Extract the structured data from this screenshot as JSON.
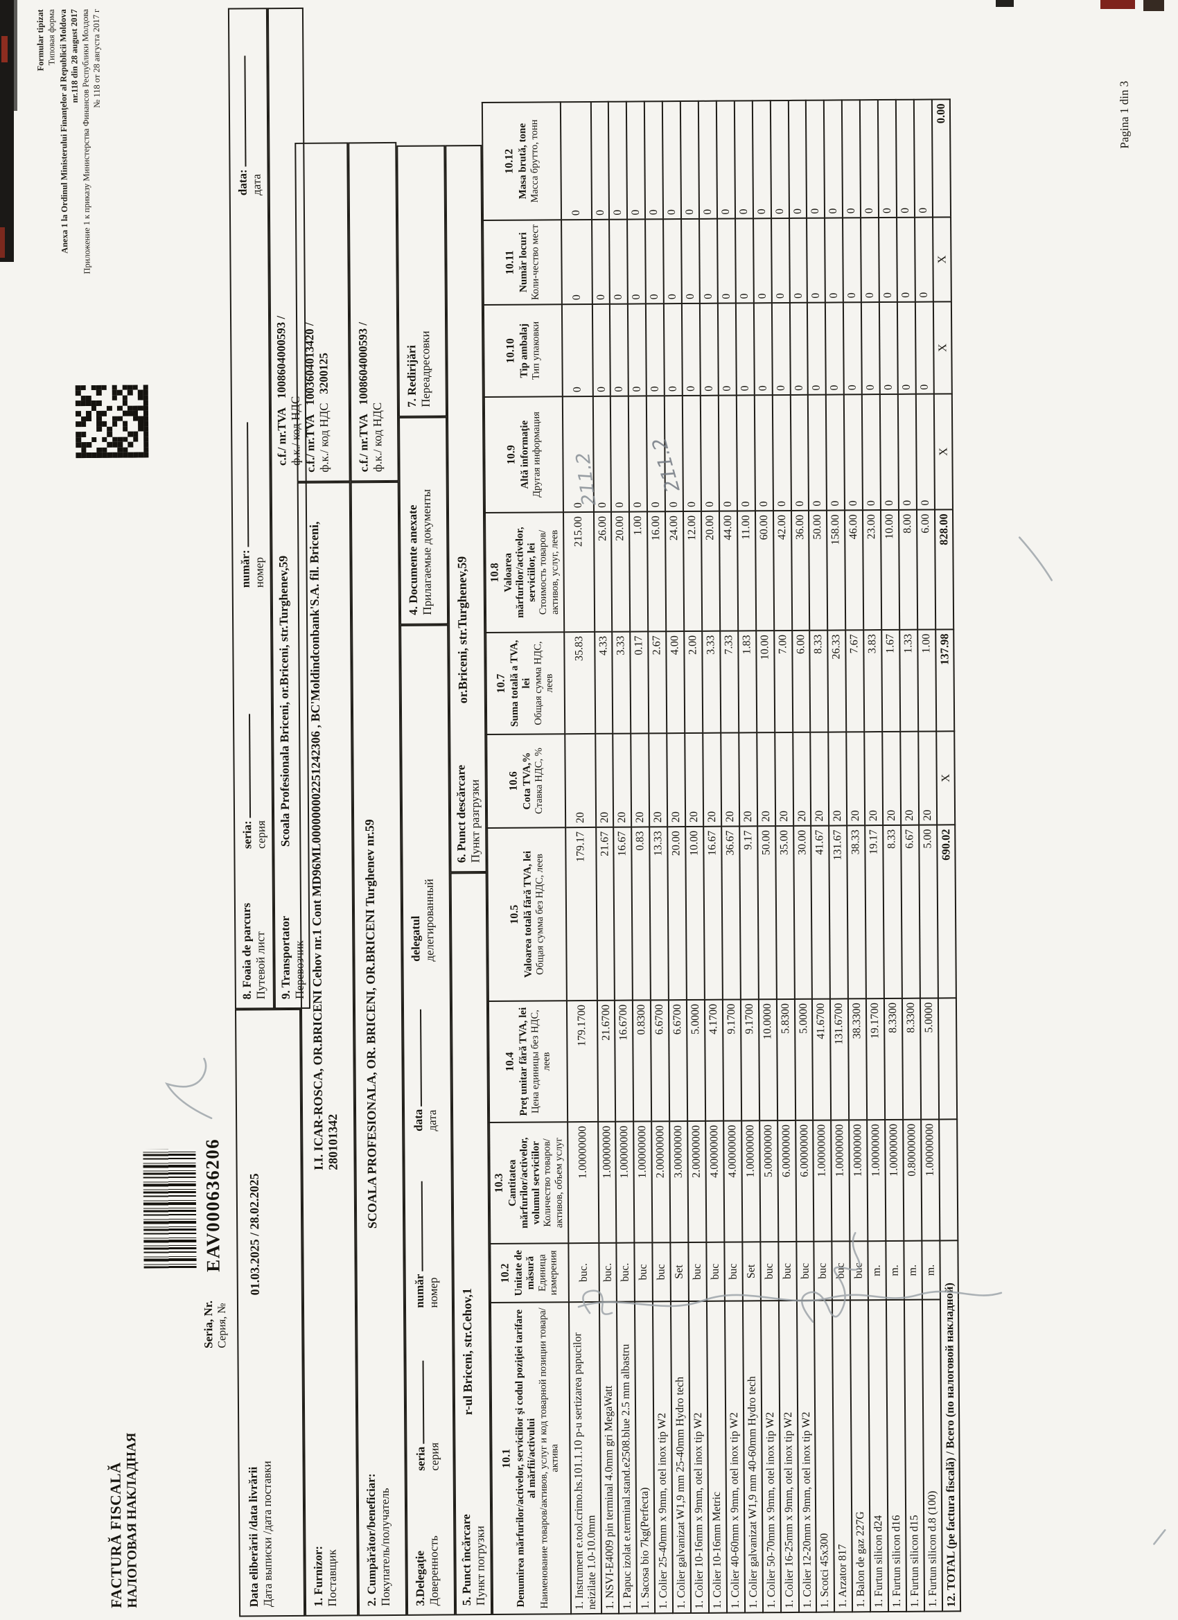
{
  "page": {
    "label": "Pagina 1 din 3"
  },
  "corner": {
    "lines": [
      {
        "text": "Formular tipizat",
        "bold": true
      },
      {
        "text": "Типовая форма",
        "bold": false
      },
      {
        "text": "Anexa 1 la Ordinul Ministerului Finanţelor al Republicii Moldova",
        "bold": true
      },
      {
        "text": "nr.118 din 28 august 2017",
        "bold": true
      },
      {
        "text": "Приложение 1 к приказу Министерства Финансов Республики Молдова",
        "bold": false
      },
      {
        "text": "№ 118 от 28 августа 2017 г",
        "bold": false
      }
    ]
  },
  "title": {
    "ro": "FACTURĂ FISCALĂ",
    "ru": "НАЛОГОВАЯ НАКЛАДНАЯ"
  },
  "series": {
    "label_ro": "Seria, Nr.",
    "label_ru": "Серия, №",
    "value": "EAV000636206"
  },
  "fields": {
    "date": {
      "label_ro": "Data eliberării /data livrării",
      "label_ru": "Дата выписки /дата поставки",
      "value": "01.03.2025 / 28.02.2025"
    },
    "furnizor": {
      "label_ro": "1. Furnizor:",
      "label_ru": "Поставщик",
      "value": "I.I. ICAR-ROSCA, OR.BRICENI Cehov nr.1 Cont MD96ML000000002251242306 , BC'Moldindconbank'S.A. fil. Briceni, 280101342"
    },
    "cumparator": {
      "label_ro": "2. Cumpărător/beneficiar:",
      "label_ru": "Покупатель/получатель",
      "value": "SCOALA PROFESIONALA, OR. BRICENI, OR.BRICENI Turghenev nr.59"
    },
    "delegatie": {
      "label_ro": "3.Delegaţie",
      "label_ru": "Доверенность",
      "seria_ro": "seria",
      "seria_ru": "серия",
      "numar_ro": "număr",
      "numar_ru": "номер",
      "data_ro": "data",
      "data_ru": "дата",
      "delegat_ro": "delegatul",
      "delegat_ru": "делегированный"
    },
    "documente": {
      "label_ro": "4. Documente anexate",
      "label_ru": "Прилагаемые документы"
    },
    "punct_incarcare": {
      "label_ro": "5. Punct încărcare",
      "label_ru": "Пункт погрузки",
      "value": "r-ul Briceni, str.Cehov,1"
    },
    "punct_descarcare": {
      "label_ro": "6. Punct descărcare",
      "label_ru": "Пункт разгрузки",
      "value": "or.Briceni, str.Turghenev,59"
    },
    "redirijari": {
      "label_ro": "7. Redirijări",
      "label_ru": "Переадресовки"
    },
    "foaia": {
      "label_ro": "8. Foaia de parcurs",
      "label_ru": "Путевой лист",
      "seria_ro": "seria:",
      "seria_ru": "серия",
      "numar_ro": "număr:",
      "numar_ru": "номер",
      "data_ro": "data:",
      "data_ru": "дата"
    },
    "transportator": {
      "label_ro": "9. Transportator",
      "label_ru": "Перевозчик",
      "value": "Scoala Profesionala Briceni,  or.Briceni, str.Turghenev,59"
    },
    "cf_transportator": {
      "label_ro": "c.f./ nr.TVA",
      "label_ru": "ф.к./ код НДС",
      "value": "1008604000593 /",
      "value2": ""
    },
    "cf_furnizor": {
      "label_ro": "c.f./ nr.TVA",
      "label_ru": "ф.к./ код НДС",
      "value": "1003604013420 /",
      "value2": "3200125"
    },
    "cf_cumparator": {
      "label_ro": "c.f./ nr.TVA",
      "label_ru": "ф.к./ код НДС",
      "value": "1008604000593 /",
      "value2": ""
    }
  },
  "table": {
    "headers": [
      {
        "num": "10.1",
        "ro": "Denumirea mărfurilor/activelor, serviciilor şi codul poziţiei tarifare al mărfii/activului",
        "ru": "Наименование товаров/активов, услуг и код товарной позиции товара/актива"
      },
      {
        "num": "10.2",
        "ro": "Unitate de măsură",
        "ru": "Единица измерения"
      },
      {
        "num": "10.3",
        "ro": "Cantitatea mărfurilor/activelor, volumul serviciilor",
        "ru": "Количество товаров/активов, объем услуг"
      },
      {
        "num": "10.4",
        "ro": "Preţ unitar fără TVA, lei",
        "ru": "Цена единицы без НДС, леев"
      },
      {
        "num": "10.5",
        "ro": "Valoarea totală fără TVA, lei",
        "ru": "Общая сумма без НДС, леев"
      },
      {
        "num": "10.6",
        "ro": "Cota TVA,%",
        "ru": "Ставка НДС, %"
      },
      {
        "num": "10.7",
        "ro": "Suma totală a TVA, lei",
        "ru": "Общая сумма НДС, леев"
      },
      {
        "num": "10.8",
        "ro": "Valoarea mărfurilor/activelor, serviciilor, lei",
        "ru": "Стоимость товаров/активов, услуг, леев"
      },
      {
        "num": "10.9",
        "ro": "Altă informaţie",
        "ru": "Другая информация"
      },
      {
        "num": "10.10",
        "ro": "Tip ambalaj",
        "ru": "Тип упаковки"
      },
      {
        "num": "10.11",
        "ro": "Număr locuri",
        "ru": "Коли-чество мест"
      },
      {
        "num": "10.12",
        "ro": "Masa brută, tone",
        "ru": "Масса брутто, тонн"
      }
    ],
    "rows": [
      {
        "name": "1. Instrument e.tool.crimo.hs.101.1.10 p-u sertizarea papucilor neizilate 1.0-10.0mm",
        "unit": "buc.",
        "qty": "1.00000000",
        "price": "179.1700",
        "value": "179.17",
        "vat_rate": "20",
        "vat_sum": "35.83",
        "total": "215.00",
        "info": "0",
        "pack": "0",
        "places": "0",
        "mass": "0"
      },
      {
        "name": "1. NSVI-E4009 pin terminal 4.0mm gri MegaWatt",
        "unit": "buc.",
        "qty": "1.00000000",
        "price": "21.6700",
        "value": "21.67",
        "vat_rate": "20",
        "vat_sum": "4.33",
        "total": "26.00",
        "info": "0",
        "pack": "0",
        "places": "0",
        "mass": "0"
      },
      {
        "name": "1. Papuc izolat e.terminal.stand.e2508.blue 2.5 mm albastru",
        "unit": "buc.",
        "qty": "1.00000000",
        "price": "16.6700",
        "value": "16.67",
        "vat_rate": "20",
        "vat_sum": "3.33",
        "total": "20.00",
        "info": "0",
        "pack": "0",
        "places": "0",
        "mass": "0"
      },
      {
        "name": "1. Sacosa bio 7kg(Perfecta)",
        "unit": "buc",
        "qty": "1.00000000",
        "price": "0.8300",
        "value": "0.83",
        "vat_rate": "20",
        "vat_sum": "0.17",
        "total": "1.00",
        "info": "0",
        "pack": "0",
        "places": "0",
        "mass": "0"
      },
      {
        "name": "1. Colier 25-40mm x 9mm, otel inox tip W2",
        "unit": "buc",
        "qty": "2.00000000",
        "price": "6.6700",
        "value": "13.33",
        "vat_rate": "20",
        "vat_sum": "2.67",
        "total": "16.00",
        "info": "0",
        "pack": "0",
        "places": "0",
        "mass": "0"
      },
      {
        "name": "1. Colier galvanizat W1,9 mm 25-40mm Hydro tech",
        "unit": "Set",
        "qty": "3.00000000",
        "price": "6.6700",
        "value": "20.00",
        "vat_rate": "20",
        "vat_sum": "4.00",
        "total": "24.00",
        "info": "0",
        "pack": "0",
        "places": "0",
        "mass": "0"
      },
      {
        "name": "1. Colier 10-16mm x 9mm, otel inox tip W2",
        "unit": "buc",
        "qty": "2.00000000",
        "price": "5.0000",
        "value": "10.00",
        "vat_rate": "20",
        "vat_sum": "2.00",
        "total": "12.00",
        "info": "0",
        "pack": "0",
        "places": "0",
        "mass": "0"
      },
      {
        "name": "1. Colier 10-16mm Metric",
        "unit": "buc",
        "qty": "4.00000000",
        "price": "4.1700",
        "value": "16.67",
        "vat_rate": "20",
        "vat_sum": "3.33",
        "total": "20.00",
        "info": "0",
        "pack": "0",
        "places": "0",
        "mass": "0"
      },
      {
        "name": "1. Colier 40-60mm x 9mm, otel inox tip W2",
        "unit": "buc",
        "qty": "4.00000000",
        "price": "9.1700",
        "value": "36.67",
        "vat_rate": "20",
        "vat_sum": "7.33",
        "total": "44.00",
        "info": "0",
        "pack": "0",
        "places": "0",
        "mass": "0"
      },
      {
        "name": "1. Colier galvanizat W1,9 mm 40-60mm Hydro tech",
        "unit": "Set",
        "qty": "1.00000000",
        "price": "9.1700",
        "value": "9.17",
        "vat_rate": "20",
        "vat_sum": "1.83",
        "total": "11.00",
        "info": "0",
        "pack": "0",
        "places": "0",
        "mass": "0"
      },
      {
        "name": "1. Colier 50-70mm x 9mm, otel inox tip W2",
        "unit": "buc",
        "qty": "5.00000000",
        "price": "10.0000",
        "value": "50.00",
        "vat_rate": "20",
        "vat_sum": "10.00",
        "total": "60.00",
        "info": "0",
        "pack": "0",
        "places": "0",
        "mass": "0"
      },
      {
        "name": "1. Colier 16-25mm x 9mm, otel inox tip W2",
        "unit": "buc",
        "qty": "6.00000000",
        "price": "5.8300",
        "value": "35.00",
        "vat_rate": "20",
        "vat_sum": "7.00",
        "total": "42.00",
        "info": "0",
        "pack": "0",
        "places": "0",
        "mass": "0"
      },
      {
        "name": "1. Colier 12-20mm x 9mm, otel inox tip W2",
        "unit": "buc",
        "qty": "6.00000000",
        "price": "5.0000",
        "value": "30.00",
        "vat_rate": "20",
        "vat_sum": "6.00",
        "total": "36.00",
        "info": "0",
        "pack": "0",
        "places": "0",
        "mass": "0"
      },
      {
        "name": "1. Scotci 45x300",
        "unit": "buc",
        "qty": "1.00000000",
        "price": "41.6700",
        "value": "41.67",
        "vat_rate": "20",
        "vat_sum": "8.33",
        "total": "50.00",
        "info": "0",
        "pack": "0",
        "places": "0",
        "mass": "0"
      },
      {
        "name": "1. Arzator 817",
        "unit": "buc",
        "qty": "1.00000000",
        "price": "131.6700",
        "value": "131.67",
        "vat_rate": "20",
        "vat_sum": "26.33",
        "total": "158.00",
        "info": "0",
        "pack": "0",
        "places": "0",
        "mass": "0"
      },
      {
        "name": "1. Balon de gaz 227G",
        "unit": "buc",
        "qty": "1.00000000",
        "price": "38.3300",
        "value": "38.33",
        "vat_rate": "20",
        "vat_sum": "7.67",
        "total": "46.00",
        "info": "0",
        "pack": "0",
        "places": "0",
        "mass": "0"
      },
      {
        "name": "1. Furtun silicon d24",
        "unit": "m.",
        "qty": "1.00000000",
        "price": "19.1700",
        "value": "19.17",
        "vat_rate": "20",
        "vat_sum": "3.83",
        "total": "23.00",
        "info": "0",
        "pack": "0",
        "places": "0",
        "mass": "0"
      },
      {
        "name": "1. Furtun silicon d16",
        "unit": "m.",
        "qty": "1.00000000",
        "price": "8.3300",
        "value": "8.33",
        "vat_rate": "20",
        "vat_sum": "1.67",
        "total": "10.00",
        "info": "0",
        "pack": "0",
        "places": "0",
        "mass": "0"
      },
      {
        "name": "1. Furtun silicon d15",
        "unit": "m.",
        "qty": "0.80000000",
        "price": "8.3300",
        "value": "6.67",
        "vat_rate": "20",
        "vat_sum": "1.33",
        "total": "8.00",
        "info": "0",
        "pack": "0",
        "places": "0",
        "mass": "0"
      },
      {
        "name": "1. Furtun silicon d.8 (100)",
        "unit": "m.",
        "qty": "1.00000000",
        "price": "5.0000",
        "value": "5.00",
        "vat_rate": "20",
        "vat_sum": "1.00",
        "total": "6.00",
        "info": "0",
        "pack": "0",
        "places": "0",
        "mass": "0"
      }
    ],
    "total_row": {
      "label": "12. TOTAL (pe factura fiscală) / Всего (по налоговой накладной)",
      "qty": "",
      "price": "",
      "value": "690.02",
      "vat_rate": "X",
      "vat_sum": "137.98",
      "total": "828.00",
      "info": "X",
      "pack": "X",
      "places": "X",
      "mass": "0.00"
    }
  },
  "annotations": {
    "hw1": "211.2",
    "hw2": "211.2"
  }
}
